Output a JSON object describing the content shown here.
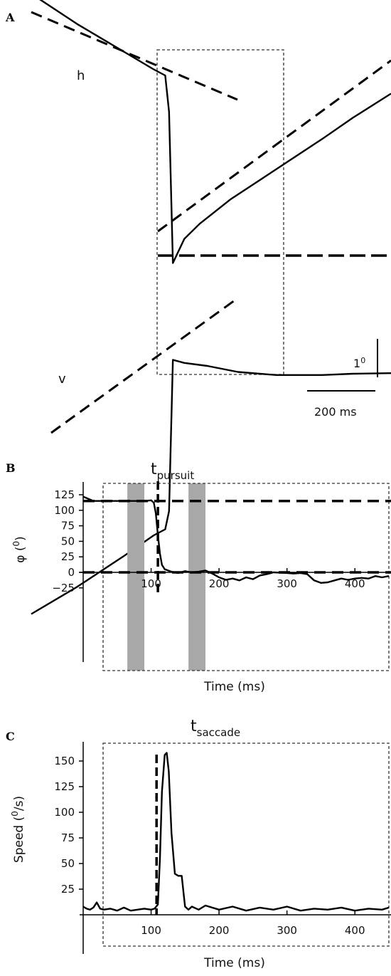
{
  "panels": {
    "a": {
      "letter": "A",
      "label_h": "h",
      "label_v": "v",
      "scale_vertical": "1",
      "scale_vertical_sup": "0",
      "scale_horizontal": "200 ms"
    },
    "b": {
      "letter": "B",
      "annotation_main": "t",
      "annotation_sub": "pursuit",
      "ylabel": "φ (",
      "ylabel_sup": "0",
      "ylabel_close": ")",
      "xlabel": "Time (ms)"
    },
    "c": {
      "letter": "C",
      "annotation_main": "t",
      "annotation_sub": "saccade",
      "ylabel": "Speed (",
      "ylabel_sup": "0",
      "ylabel_close": "/s)",
      "xlabel": "Time (ms)"
    }
  },
  "chart_data": [
    {
      "type": "line",
      "panel": "A",
      "series": [
        {
          "name": "h",
          "x": [
            0,
            60,
            120,
            160,
            175,
            180,
            185,
            200,
            220,
            260,
            320,
            380,
            420,
            470
          ],
          "y": [
            3.95,
            3.45,
            3.0,
            2.7,
            2.6,
            2.0,
            -0.5,
            -0.1,
            0.15,
            0.55,
            1.05,
            1.55,
            1.9,
            2.3
          ]
        },
        {
          "name": "v",
          "x": [
            0,
            60,
            120,
            160,
            175,
            180,
            185,
            200,
            230,
            270,
            320,
            380,
            420,
            470
          ],
          "y": [
            -6.3,
            -5.85,
            -5.35,
            -5.0,
            -4.9,
            -4.6,
            -2.1,
            -2.15,
            -2.2,
            -2.3,
            -2.35,
            -2.35,
            -2.33,
            -2.32
          ]
        }
      ],
      "scale_bars": {
        "vertical_deg": 1,
        "horizontal_ms": 200
      }
    },
    {
      "type": "line",
      "panel": "B",
      "x_ticks": [
        100,
        200,
        300,
        400
      ],
      "y_ticks": [
        -25,
        0,
        25,
        50,
        75,
        100,
        125
      ],
      "xlim": [
        0,
        450
      ],
      "ylim": [
        -35,
        140
      ],
      "xlabel": "Time (ms)",
      "series": [
        {
          "x": [
            0,
            15,
            30,
            50,
            70,
            90,
            100,
            104,
            107,
            110,
            113,
            116,
            120,
            130,
            140,
            150,
            160,
            170,
            180,
            190,
            200,
            210,
            220,
            230,
            240,
            250,
            260,
            270,
            280,
            300,
            310,
            320,
            330,
            340,
            350,
            360,
            370,
            380,
            390,
            400,
            410,
            420,
            430,
            440,
            450
          ],
          "y": [
            122,
            115,
            115,
            115,
            115,
            115,
            116,
            112,
            95,
            60,
            30,
            12,
            5,
            1,
            -1,
            2,
            0,
            1,
            3,
            -2,
            -8,
            -12,
            -10,
            -13,
            -8,
            -11,
            -5,
            -3,
            0,
            -1,
            -2,
            -1,
            -3,
            -13,
            -17,
            -16,
            -13,
            -10,
            -12,
            -10,
            -9,
            -10,
            -6,
            -8,
            -6
          ]
        }
      ],
      "reference_lines": [
        115,
        0
      ],
      "marker_x": 110,
      "shaded_intervals": [
        [
          65,
          90
        ],
        [
          155,
          180
        ]
      ],
      "analysis_window": [
        30,
        450
      ]
    },
    {
      "type": "line",
      "panel": "C",
      "x_ticks": [
        100,
        200,
        300,
        400
      ],
      "y_ticks": [
        25,
        50,
        75,
        100,
        125,
        150
      ],
      "xlim": [
        0,
        450
      ],
      "ylim": [
        -8,
        168
      ],
      "xlabel": "Time (ms)",
      "series": [
        {
          "x": [
            0,
            5,
            10,
            15,
            20,
            25,
            30,
            40,
            50,
            60,
            70,
            80,
            90,
            100,
            105,
            110,
            113,
            116,
            120,
            123,
            126,
            130,
            135,
            140,
            145,
            148,
            150,
            155,
            160,
            170,
            180,
            200,
            220,
            240,
            260,
            280,
            300,
            320,
            340,
            360,
            380,
            400,
            420,
            440,
            450
          ],
          "y": [
            8,
            6,
            5,
            7,
            12,
            6,
            5,
            6,
            4,
            7,
            4,
            5,
            6,
            5,
            6,
            10,
            55,
            120,
            156,
            158,
            140,
            80,
            40,
            38,
            38,
            20,
            8,
            5,
            8,
            5,
            9,
            5,
            8,
            4,
            7,
            5,
            8,
            4,
            6,
            5,
            7,
            4,
            6,
            5,
            7
          ]
        }
      ],
      "marker_x": 108,
      "analysis_window": [
        30,
        450
      ]
    }
  ]
}
